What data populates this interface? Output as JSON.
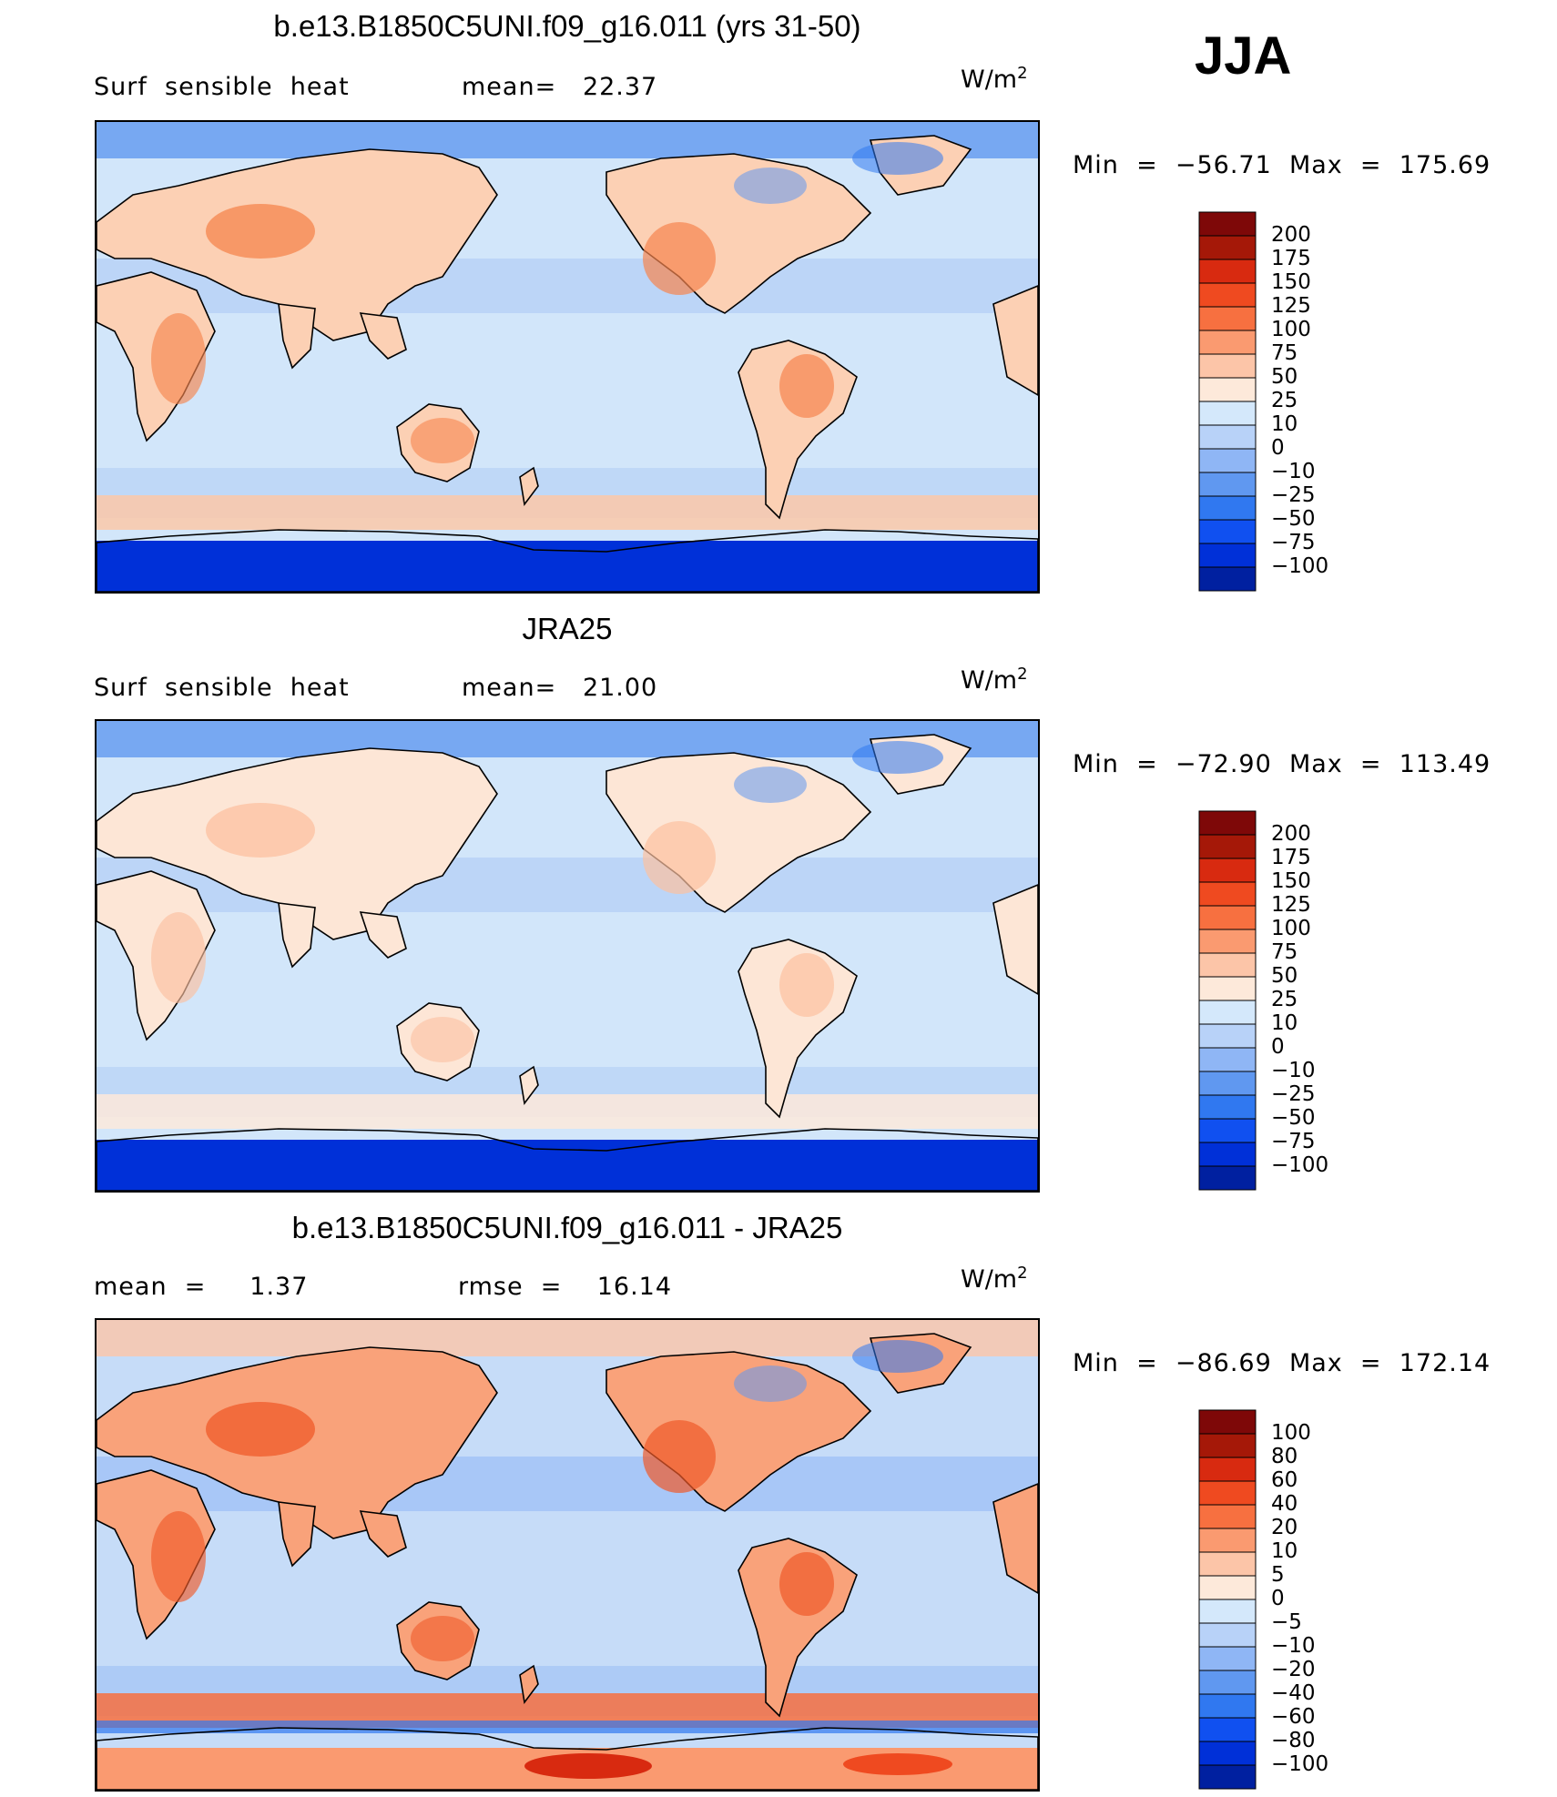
{
  "season": "JJA",
  "units_text": "W/m",
  "units_sup": "2",
  "colors": {
    "ten_level": [
      "#000070",
      "#0020a0",
      "#0030d8",
      "#1050f0",
      "#3078f0",
      "#6098f0",
      "#8fb6f5",
      "#b8d2f8",
      "#d4e8fb",
      "#fde9da",
      "#fcc5a8",
      "#fa9a70",
      "#f77040",
      "#ef4a20",
      "#d82a10",
      "#a51808",
      "#7e0808"
    ],
    "diff": [
      "#000070",
      "#0020a0",
      "#0030d8",
      "#1050f0",
      "#3078f0",
      "#6098f0",
      "#8fb6f5",
      "#b8d2f8",
      "#d4e8fb",
      "#fde9da",
      "#fcc5a8",
      "#fa9a70",
      "#f77040",
      "#ef4a20",
      "#d82a10",
      "#a51808",
      "#7e0808"
    ],
    "ocean_light": "#d2e6fa",
    "ocean_mid": "#a9c7f4",
    "land_warm": "#fcd0b4",
    "land_hot": "#f6854e",
    "antarctic": "#0a3ad8",
    "southern_band": "#fcc8a8"
  },
  "panels": [
    {
      "title": "b.e13.B1850C5UNI.f09_g16.011 (yrs 31-50)",
      "left_label": "Surf  sensible  heat",
      "mid_label": "mean=   22.37",
      "minmax": "Min  =  −56.71  Max  =  175.69",
      "levels": [
        "200",
        "175",
        "150",
        "125",
        "100",
        "75",
        "50",
        "25",
        "10",
        "0",
        "−10",
        "−25",
        "−50",
        "−75",
        "−100"
      ]
    },
    {
      "title": "JRA25",
      "left_label": "Surf  sensible  heat",
      "mid_label": "mean=   21.00",
      "minmax": "Min  =  −72.90  Max  =  113.49",
      "levels": [
        "200",
        "175",
        "150",
        "125",
        "100",
        "75",
        "50",
        "25",
        "10",
        "0",
        "−10",
        "−25",
        "−50",
        "−75",
        "−100"
      ]
    },
    {
      "title": "b.e13.B1850C5UNI.f09_g16.011 - JRA25",
      "left_label": "mean  =     1.37",
      "mid_label": "rmse  =    16.14",
      "minmax": "Min  =  −86.69  Max  =  172.14",
      "levels": [
        "100",
        "80",
        "60",
        "40",
        "20",
        "10",
        "5",
        "0",
        "−5",
        "−10",
        "−20",
        "−40",
        "−60",
        "−80",
        "−100"
      ]
    }
  ],
  "chart_data": [
    {
      "type": "heatmap",
      "title": "b.e13.B1850C5UNI.f09_g16.011 (yrs 31-50)",
      "variable": "Surf  sensible  heat",
      "units": "W/m2",
      "mean": 22.37,
      "min": -56.71,
      "max": 175.69,
      "contour_levels": [
        -100,
        -75,
        -50,
        -25,
        -10,
        0,
        10,
        25,
        50,
        75,
        100,
        125,
        150,
        175,
        200
      ],
      "projection": "cylindrical equidistant, centered on Pacific"
    },
    {
      "type": "heatmap",
      "title": "JRA25",
      "variable": "Surf  sensible  heat",
      "units": "W/m2",
      "mean": 21.0,
      "min": -72.9,
      "max": 113.49,
      "contour_levels": [
        -100,
        -75,
        -50,
        -25,
        -10,
        0,
        10,
        25,
        50,
        75,
        100,
        125,
        150,
        175,
        200
      ],
      "projection": "cylindrical equidistant, centered on Pacific"
    },
    {
      "type": "heatmap",
      "title": "b.e13.B1850C5UNI.f09_g16.011 - JRA25",
      "units": "W/m2",
      "mean": 1.37,
      "rmse": 16.14,
      "min": -86.69,
      "max": 172.14,
      "contour_levels": [
        -100,
        -80,
        -60,
        -40,
        -20,
        -10,
        -5,
        0,
        5,
        10,
        20,
        40,
        60,
        80,
        100
      ],
      "projection": "cylindrical equidistant, centered on Pacific"
    }
  ]
}
